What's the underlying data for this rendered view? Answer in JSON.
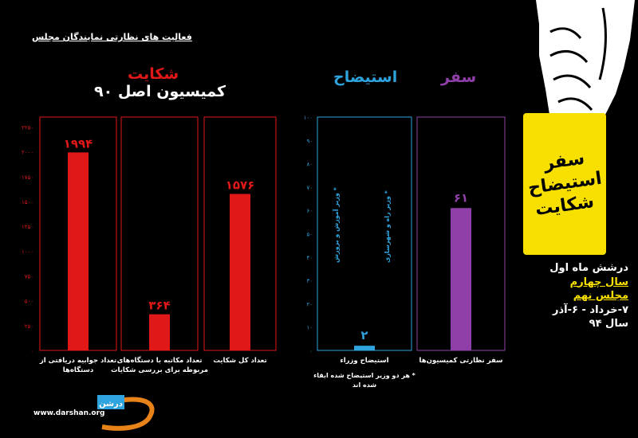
{
  "headline": "فعالیت های نظارتی نمایندگان مجلس",
  "badge_lines": [
    "سفر",
    "استیضاح",
    "شکایت"
  ],
  "info": {
    "line1": "درشش ماه اول",
    "line2": "سال چهارم",
    "line3": "مجلس نهم",
    "line4": "۷-خرداد - ۶-آذر",
    "line5": "سال ۹۴"
  },
  "website": "www.darshan.org",
  "logo_text": "درشن",
  "colors": {
    "complaint": "#e01818",
    "impeach": "#2ea3dd",
    "travel": "#8e3fa8",
    "badge": "#f7e000"
  },
  "chart_data": [
    {
      "type": "bar",
      "title": "شکایت",
      "subtitle": "کمیسیون اصل ۹۰",
      "categories": [
        "تعداد جوابیه دریافتی از دستگاه‌ها",
        "تعداد مکاتبه با دستگاه‌های مربوطه برای بررسی شکایات",
        "تعداد کل شکایت"
      ],
      "value_labels": [
        "۱۹۹۴",
        "۳۶۴",
        "۱۵۷۶"
      ],
      "values": [
        1994,
        364,
        1576
      ],
      "ylim": [
        0,
        2350
      ],
      "yticks": [
        0,
        250,
        500,
        750,
        1000,
        1250,
        1500,
        1750,
        2000,
        2250
      ],
      "ytick_labels": [
        "۰",
        "۲۵۰",
        "۵۰۰",
        "۷۵۰",
        "۱۰۰۰",
        "۱۲۵۰",
        "۱۵۰۰",
        "۱۷۵۰",
        "۲۰۰۰",
        "۲۲۵۰"
      ],
      "color": "#e01818"
    },
    {
      "type": "bar",
      "title": "استیضاح",
      "categories": [
        "استیضاح وزراء"
      ],
      "value_labels": [
        "۲"
      ],
      "values": [
        2
      ],
      "bar_annotations": [
        "* وزیر آموزش و پرورش",
        "* وزیر راه و شهرسازی"
      ],
      "footnote": "* هر دو وزیر استیضاح شده ابقاء شده اند",
      "ylim": [
        0,
        100
      ],
      "yticks": [
        0,
        10,
        20,
        30,
        40,
        50,
        60,
        70,
        80,
        90,
        100
      ],
      "ytick_labels": [
        "۰",
        "۱۰",
        "۲۰",
        "۳۰",
        "۴۰",
        "۵۰",
        "۶۰",
        "۷۰",
        "۸۰",
        "۹۰",
        "۱۰۰"
      ],
      "color": "#2ea3dd"
    },
    {
      "type": "bar",
      "title": "سفر",
      "categories": [
        "سفر نظارتی کمیسیون‌ها"
      ],
      "value_labels": [
        "۶۱"
      ],
      "values": [
        61
      ],
      "ylim": [
        0,
        100
      ],
      "color": "#8e3fa8"
    }
  ]
}
